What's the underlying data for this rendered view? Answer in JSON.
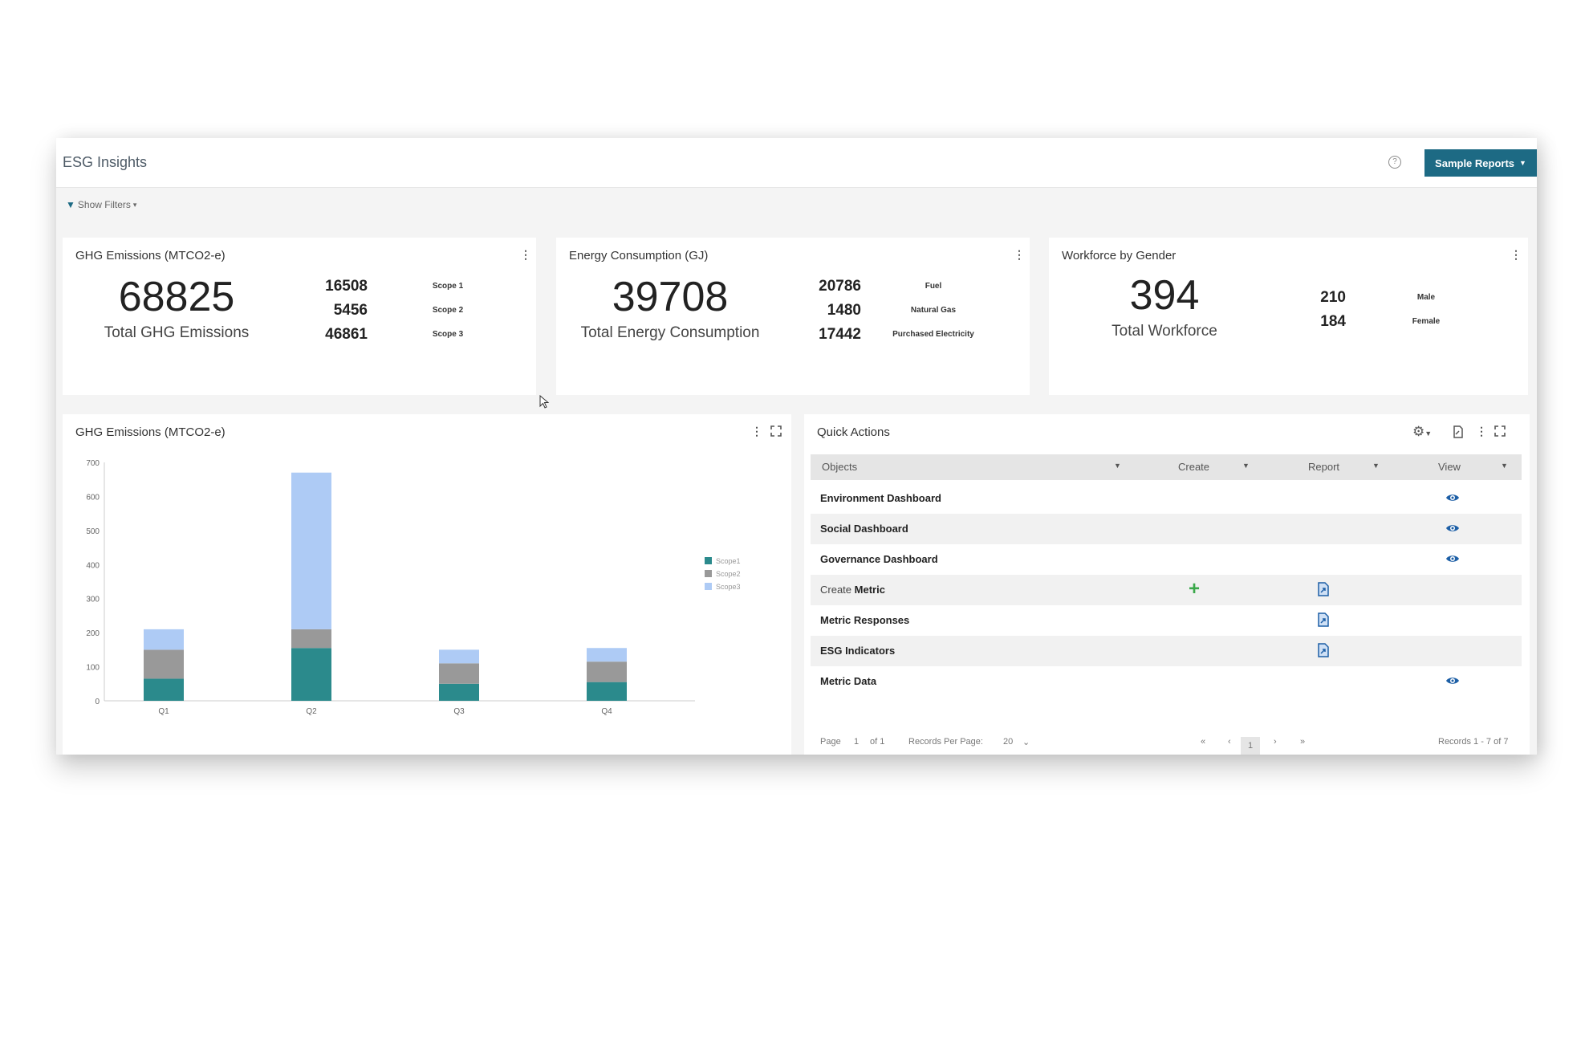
{
  "app": {
    "title": "ESG Insights",
    "sample_reports_label": "Sample Reports",
    "show_filters_label": "Show Filters",
    "accent_color": "#1d6a84"
  },
  "kpis": {
    "ghg": {
      "title": "GHG Emissions (MTCO2-e)",
      "total": "68825",
      "total_label": "Total GHG Emissions",
      "items": [
        {
          "value": "16508",
          "label": "Scope 1"
        },
        {
          "value": "5456",
          "label": "Scope 2"
        },
        {
          "value": "46861",
          "label": "Scope 3"
        }
      ]
    },
    "energy": {
      "title": "Energy Consumption (GJ)",
      "total": "39708",
      "total_label": "Total Energy Consumption",
      "items": [
        {
          "value": "20786",
          "label": "Fuel"
        },
        {
          "value": "1480",
          "label": "Natural Gas"
        },
        {
          "value": "17442",
          "label": "Purchased Electricity"
        }
      ]
    },
    "workforce": {
      "title": "Workforce by Gender",
      "total": "394",
      "total_label": "Total Workforce",
      "items": [
        {
          "value": "210",
          "label": "Male"
        },
        {
          "value": "184",
          "label": "Female"
        }
      ]
    }
  },
  "chart_panel": {
    "title": "GHG Emissions (MTCO2-e)"
  },
  "chart_data": {
    "type": "bar",
    "stacked": true,
    "categories": [
      "Q1",
      "Q2",
      "Q3",
      "Q4"
    ],
    "series": [
      {
        "name": "Scope1",
        "color": "#2b8a8c",
        "values": [
          65,
          155,
          50,
          55
        ]
      },
      {
        "name": "Scope2",
        "color": "#999999",
        "values": [
          85,
          55,
          60,
          60
        ]
      },
      {
        "name": "Scope3",
        "color": "#aecbf5",
        "values": [
          60,
          460,
          40,
          40
        ]
      }
    ],
    "ylim": [
      0,
      700
    ],
    "yticks": [
      0,
      100,
      200,
      300,
      400,
      500,
      600,
      700
    ],
    "legend_position": "right"
  },
  "quick_actions": {
    "title": "Quick Actions",
    "columns": [
      "Objects",
      "Create",
      "Report",
      "View"
    ],
    "rows": [
      {
        "object": "Environment Dashboard",
        "create": false,
        "report": false,
        "view": true
      },
      {
        "object": "Social Dashboard",
        "create": false,
        "report": false,
        "view": true
      },
      {
        "object": "Governance Dashboard",
        "create": false,
        "report": false,
        "view": true
      },
      {
        "object_prefix": "Create ",
        "object": "Metric",
        "create": true,
        "report": true,
        "view": false
      },
      {
        "object": "Metric Responses",
        "create": false,
        "report": true,
        "view": false
      },
      {
        "object": "ESG Indicators",
        "create": false,
        "report": true,
        "view": false
      },
      {
        "object": "Metric Data",
        "create": false,
        "report": false,
        "view": true
      }
    ],
    "pager": {
      "page_label": "Page",
      "page_value": "1",
      "of_label": "of 1",
      "records_per_page_label": "Records Per Page:",
      "records_per_page_value": "20",
      "current_page": "1",
      "records_summary": "Records 1 - 7 of 7"
    }
  }
}
